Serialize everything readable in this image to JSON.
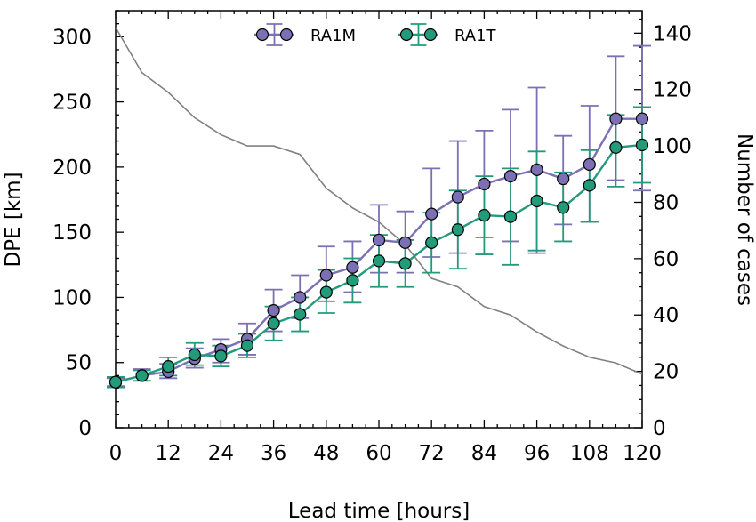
{
  "chart_data": {
    "type": "line",
    "x": [
      0,
      6,
      12,
      18,
      24,
      30,
      36,
      42,
      48,
      54,
      60,
      66,
      72,
      78,
      84,
      90,
      96,
      102,
      108,
      114,
      120
    ],
    "xlabel": "Lead time [hours]",
    "ylabel": "DPE [km]",
    "y2label": "Number of cases",
    "xlim": [
      0,
      120
    ],
    "ylim": [
      0,
      320
    ],
    "y2lim": [
      0,
      148
    ],
    "xticks": [
      0,
      12,
      24,
      36,
      48,
      60,
      72,
      84,
      96,
      108,
      120
    ],
    "yticks": [
      0,
      50,
      100,
      150,
      200,
      250,
      300
    ],
    "y2ticks": [
      0,
      20,
      40,
      60,
      80,
      100,
      120,
      140
    ],
    "grid": false,
    "legend_position": "top-center",
    "series": [
      {
        "name": "RA1M",
        "color": "#7b70b3",
        "values": [
          35,
          40,
          43,
          53,
          60,
          68,
          90,
          100,
          117,
          123,
          144,
          142,
          164,
          177,
          187,
          193,
          198,
          191,
          202,
          237,
          237
        ],
        "err_low": [
          32,
          36,
          38,
          46,
          50,
          56,
          74,
          84,
          97,
          104,
          119,
          119,
          131,
          134,
          146,
          143,
          134,
          156,
          158,
          190,
          182
        ],
        "err_high": [
          38,
          45,
          49,
          61,
          68,
          80,
          106,
          117,
          139,
          143,
          171,
          166,
          199,
          220,
          228,
          244,
          261,
          224,
          247,
          285,
          293
        ]
      },
      {
        "name": "RA1T",
        "color": "#239b7a",
        "values": [
          35,
          40,
          47,
          56,
          55,
          63,
          80,
          87,
          104,
          113,
          128,
          126,
          142,
          152,
          163,
          162,
          174,
          169,
          186,
          215,
          217
        ],
        "err_low": [
          31,
          36,
          40,
          48,
          47,
          54,
          67,
          74,
          88,
          96,
          108,
          108,
          119,
          122,
          133,
          125,
          136,
          143,
          158,
          185,
          188
        ],
        "err_high": [
          39,
          44,
          54,
          65,
          63,
          72,
          93,
          100,
          121,
          130,
          148,
          144,
          165,
          182,
          193,
          199,
          212,
          196,
          213,
          240,
          246
        ]
      },
      {
        "name": "",
        "axis": "right",
        "color": "#808080",
        "values": [
          142,
          126,
          119,
          110,
          104,
          100,
          100,
          97,
          85,
          78,
          73,
          65,
          53,
          50,
          43,
          40,
          34,
          29,
          25,
          23,
          19
        ]
      }
    ]
  }
}
